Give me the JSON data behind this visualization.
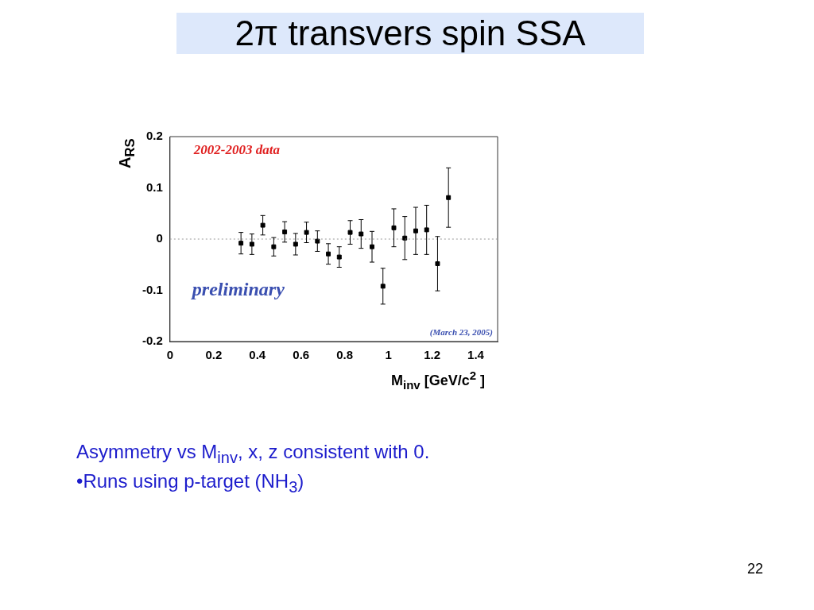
{
  "chart_data": {
    "type": "scatter",
    "title": "2π transvers spin SSA",
    "xlabel": "M$_{inv}$ [GeV/c$^{2}$ ]",
    "ylabel": "A$_{RS}$",
    "x": [
      0.325,
      0.375,
      0.425,
      0.475,
      0.525,
      0.575,
      0.625,
      0.675,
      0.725,
      0.775,
      0.825,
      0.875,
      0.925,
      0.975,
      1.025,
      1.075,
      1.125,
      1.175,
      1.225,
      1.275
    ],
    "values": [
      -0.008,
      -0.01,
      0.027,
      -0.015,
      0.014,
      -0.01,
      0.013,
      -0.004,
      -0.029,
      -0.035,
      0.013,
      0.01,
      -0.015,
      -0.092,
      0.022,
      0.002,
      0.016,
      0.018,
      -0.048,
      0.081
    ],
    "errors": [
      0.021,
      0.02,
      0.019,
      0.018,
      0.02,
      0.021,
      0.02,
      0.02,
      0.02,
      0.02,
      0.023,
      0.028,
      0.03,
      0.035,
      0.037,
      0.042,
      0.046,
      0.048,
      0.053,
      0.058
    ],
    "color": "#000000",
    "marker": "square",
    "grid": false,
    "legend": false,
    "xlim": [
      0,
      1.5
    ],
    "xticks": [
      0,
      0.2,
      0.4,
      0.6,
      0.8,
      1,
      1.2,
      1.4
    ],
    "ylim": [
      -0.2,
      0.2
    ],
    "yticks": [
      -0.2,
      -0.1,
      0,
      0.1,
      0.2
    ],
    "ref_lines": [
      {
        "axis": "y",
        "value": 0,
        "color": "#999999",
        "line_style": "dotted"
      }
    ],
    "annotations": [
      "2002-2003 data",
      "preliminary",
      "(March 23, 2005)",
      "Asymmetry vs M$_{inv}$, x, z consistent with 0.",
      "•Runs using p-target (NH$_{3}$)",
      "22"
    ]
  }
}
